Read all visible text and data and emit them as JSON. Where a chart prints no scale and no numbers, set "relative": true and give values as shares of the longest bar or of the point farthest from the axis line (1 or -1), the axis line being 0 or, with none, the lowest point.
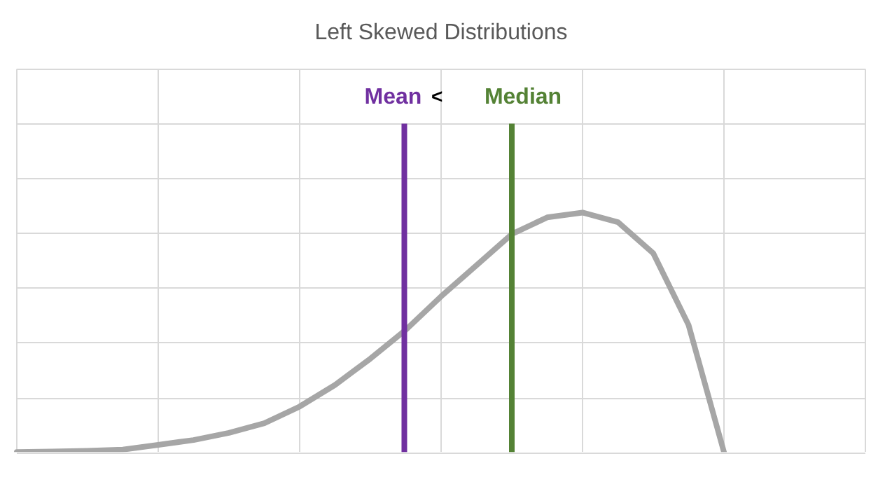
{
  "chart_data": {
    "type": "line",
    "title": "Left Skewed Distributions",
    "relative": true,
    "grid": true,
    "legend": false,
    "marker": "none",
    "line_style": "solid",
    "categories": [
      null,
      null,
      null,
      null,
      null,
      null,
      null,
      null,
      null,
      null,
      null,
      null,
      null,
      null,
      null,
      null,
      null,
      null,
      null,
      null,
      null,
      null,
      null,
      null,
      null
    ],
    "series": [
      {
        "color": "#a6a6a6",
        "values": [
          0,
          0.002,
          0.005,
          0.01,
          0.03,
          0.05,
          0.08,
          0.12,
          0.19,
          0.28,
          0.39,
          0.51,
          0.65,
          0.78,
          0.91,
          0.98,
          1,
          0.96,
          0.83,
          0.53,
          0,
          null,
          null,
          null,
          null
        ]
      }
    ],
    "annotations": [
      "Mean",
      "<",
      "Median"
    ]
  }
}
